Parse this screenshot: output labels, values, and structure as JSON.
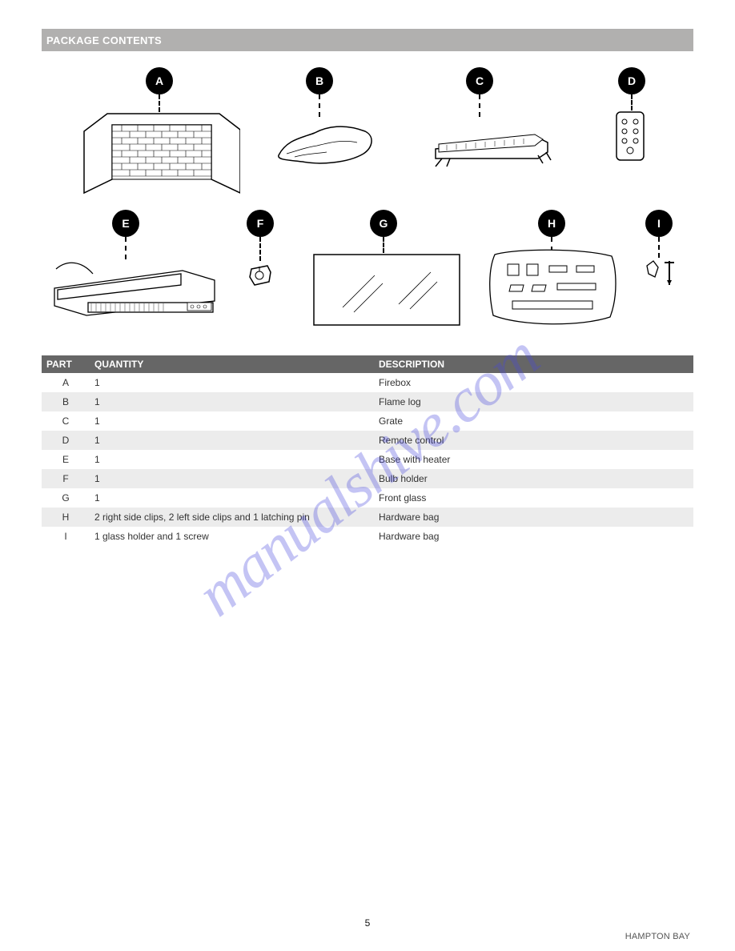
{
  "header": {
    "title": "PACKAGE CONTENTS"
  },
  "parts_row1": [
    {
      "id": "A",
      "label": "A"
    },
    {
      "id": "B",
      "label": "B"
    },
    {
      "id": "C",
      "label": "C"
    },
    {
      "id": "D",
      "label": "D"
    }
  ],
  "parts_row2": [
    {
      "id": "E",
      "label": "E"
    },
    {
      "id": "F",
      "label": "F"
    },
    {
      "id": "G",
      "label": "G"
    },
    {
      "id": "H",
      "label": "H"
    },
    {
      "id": "I",
      "label": "I"
    }
  ],
  "table": {
    "headers": {
      "part": "PART",
      "qty": "QUANTITY",
      "desc": "DESCRIPTION"
    },
    "rows": [
      {
        "part": "A",
        "qty": "1",
        "desc": "Firebox",
        "parity": "odd"
      },
      {
        "part": "B",
        "qty": "1",
        "desc": "Flame log",
        "parity": "even"
      },
      {
        "part": "C",
        "qty": "1",
        "desc": "Grate",
        "parity": "odd"
      },
      {
        "part": "D",
        "qty": "1",
        "desc": "Remote control",
        "parity": "even"
      },
      {
        "part": "E",
        "qty": "1",
        "desc": "Base with heater",
        "parity": "odd"
      },
      {
        "part": "F",
        "qty": "1",
        "desc": "Bulb holder",
        "parity": "even"
      },
      {
        "part": "G",
        "qty": "1",
        "desc": "Front glass",
        "parity": "odd"
      },
      {
        "part": "H",
        "qty": "2 right side clips, 2 left side clips and 1 latching pin",
        "desc": "Hardware bag",
        "parity": "even"
      },
      {
        "part": "I",
        "qty": "1 glass holder and 1 screw",
        "desc": "Hardware bag",
        "parity": "odd"
      }
    ]
  },
  "footer": {
    "page": "5",
    "brand": "HAMPTON BAY"
  },
  "watermark": "manualshive.com",
  "colors": {
    "headerBar": "#b1b0af",
    "tableHeader": "#666666",
    "tableAlt": "#ececec",
    "watermark": "rgba(70,70,220,0.32)"
  }
}
